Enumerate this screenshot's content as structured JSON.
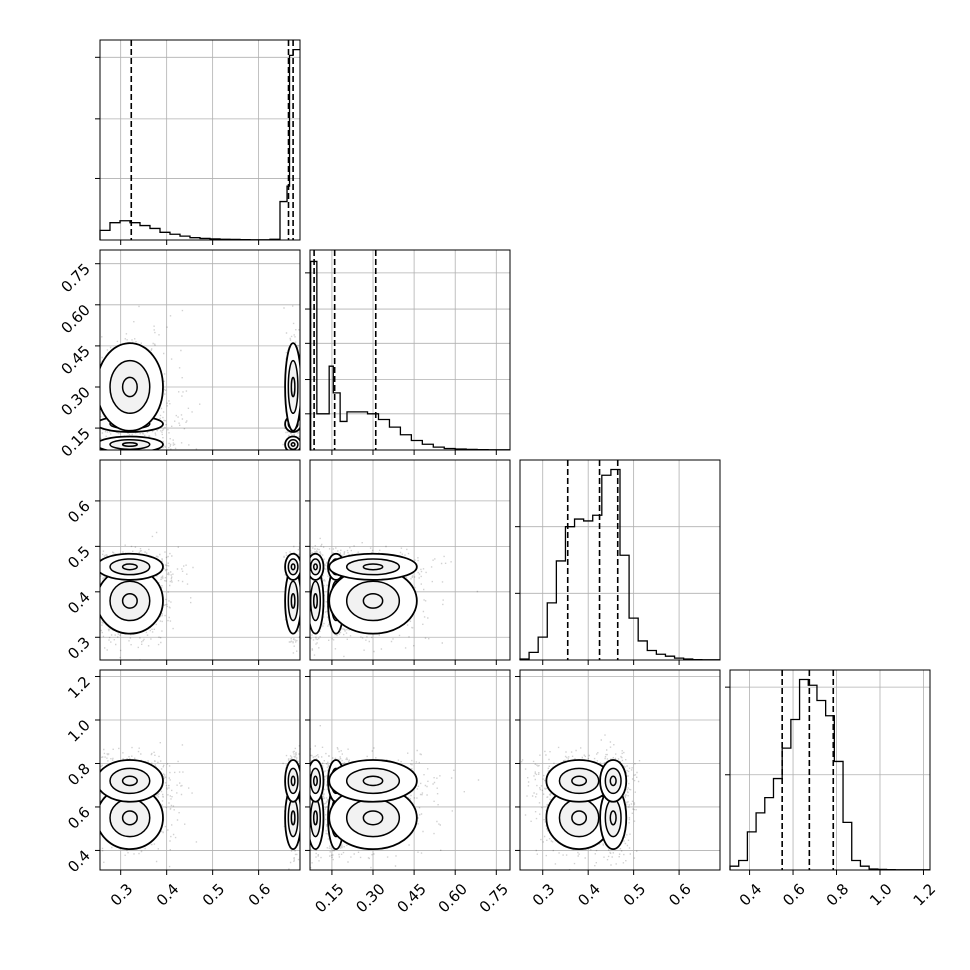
{
  "chart_data": {
    "type": "scatter",
    "title": "",
    "variables": [
      {
        "range": [
          0.255,
          0.69
        ],
        "ticks": [
          "0.3",
          "0.4",
          "0.5",
          "0.6"
        ],
        "tick_values": [
          0.3,
          0.4,
          0.5,
          0.6
        ],
        "quantiles": [
          0.323,
          0.665,
          0.675
        ],
        "modes": [
          {
            "center": 0.32,
            "spread": 0.045,
            "weight": 0.6
          },
          {
            "center": 0.675,
            "spread": 0.008,
            "weight": 0.4
          }
        ]
      },
      {
        "range": [
          0.07,
          0.8
        ],
        "ticks": [
          "0.15",
          "0.30",
          "0.45",
          "0.60",
          "0.75"
        ],
        "tick_values": [
          0.15,
          0.3,
          0.45,
          0.6,
          0.75
        ],
        "quantiles": [
          0.085,
          0.16,
          0.31
        ],
        "modes": [
          {
            "center": 0.09,
            "spread": 0.012,
            "weight": 0.3
          },
          {
            "center": 0.165,
            "spread": 0.018,
            "weight": 0.3
          },
          {
            "center": 0.3,
            "spread": 0.1,
            "weight": 0.4
          }
        ]
      },
      {
        "range": [
          0.25,
          0.69
        ],
        "ticks": [
          "0.3",
          "0.4",
          "0.5",
          "0.6"
        ],
        "tick_values": [
          0.3,
          0.4,
          0.5,
          0.6
        ],
        "quantiles": [
          0.355,
          0.425,
          0.465
        ],
        "modes": [
          {
            "center": 0.38,
            "spread": 0.045,
            "weight": 0.55
          },
          {
            "center": 0.455,
            "spread": 0.018,
            "weight": 0.45
          }
        ]
      },
      {
        "range": [
          0.31,
          1.23
        ],
        "ticks": [
          "0.4",
          "0.6",
          "0.8",
          "1.0",
          "1.2"
        ],
        "tick_values": [
          0.4,
          0.6,
          0.8,
          1.0,
          1.2
        ],
        "quantiles": [
          0.55,
          0.675,
          0.785
        ],
        "modes": [
          {
            "center": 0.55,
            "spread": 0.09,
            "weight": 0.4
          },
          {
            "center": 0.72,
            "spread": 0.06,
            "weight": 0.6
          }
        ]
      }
    ],
    "histograms": [
      {
        "variable": 0,
        "bin_edges": [
          0.255,
          0.2767,
          0.2985,
          0.3202,
          0.342,
          0.3637,
          0.3855,
          0.4072,
          0.429,
          0.4507,
          0.4725,
          0.4942,
          0.516,
          0.5377,
          0.5595,
          0.5812,
          0.603,
          0.6247,
          0.6465,
          0.6618,
          0.6672,
          0.675,
          0.69
        ],
        "counts": [
          0.05,
          0.09,
          0.1,
          0.09,
          0.075,
          0.06,
          0.04,
          0.03,
          0.02,
          0.012,
          0.008,
          0.006,
          0.004,
          0.003,
          0.002,
          0.001,
          0.001,
          0.004,
          0.2,
          0.28,
          0.96,
          0.99
        ],
        "ymax": 1.04,
        "ytick_values": [
          0.32,
          0.63,
          0.95
        ]
      },
      {
        "variable": 1,
        "bin_edges": [
          0.07,
          0.0725,
          0.095,
          0.12,
          0.14,
          0.155,
          0.18,
          0.205,
          0.23,
          0.28,
          0.32,
          0.36,
          0.4,
          0.44,
          0.48,
          0.52,
          0.56,
          0.6,
          0.64,
          0.68,
          0.72,
          0.76,
          0.8
        ],
        "counts": [
          0,
          0.99,
          0.19,
          0.19,
          0.44,
          0.3,
          0.15,
          0.2,
          0.2,
          0.19,
          0.16,
          0.12,
          0.08,
          0.05,
          0.03,
          0.015,
          0.008,
          0.005,
          0.003,
          0.002,
          0.001,
          0.001
        ],
        "ymax": 1.05,
        "ytick_values": [
          0.19,
          0.37,
          0.56,
          0.74,
          0.93
        ]
      },
      {
        "variable": 2,
        "bin_edges": [
          0.25,
          0.27,
          0.29,
          0.31,
          0.33,
          0.35,
          0.37,
          0.39,
          0.41,
          0.43,
          0.45,
          0.47,
          0.49,
          0.51,
          0.53,
          0.55,
          0.57,
          0.59,
          0.61,
          0.63,
          0.65,
          0.69
        ],
        "counts": [
          0.005,
          0.04,
          0.12,
          0.3,
          0.52,
          0.7,
          0.74,
          0.73,
          0.76,
          0.97,
          1.0,
          0.55,
          0.22,
          0.1,
          0.05,
          0.03,
          0.02,
          0.01,
          0.005,
          0.002,
          0.001
        ],
        "ymax": 1.05,
        "ytick_values": [
          0.35,
          0.7
        ]
      },
      {
        "variable": 3,
        "bin_edges": [
          0.31,
          0.35,
          0.39,
          0.43,
          0.47,
          0.51,
          0.55,
          0.59,
          0.63,
          0.67,
          0.71,
          0.75,
          0.79,
          0.83,
          0.87,
          0.91,
          0.95,
          0.99,
          1.03,
          1.07,
          1.11,
          1.15,
          1.23
        ],
        "counts": [
          0.02,
          0.05,
          0.2,
          0.3,
          0.38,
          0.48,
          0.64,
          0.79,
          1.0,
          0.97,
          0.89,
          0.81,
          0.57,
          0.25,
          0.05,
          0.02,
          0.005,
          0.003,
          0.002,
          0.001,
          0.001,
          0.001
        ],
        "ymax": 1.05,
        "ytick_values": [
          0.5,
          0.96
        ]
      }
    ],
    "scatter_panels": [
      {
        "x_var": 0,
        "y_var": 1
      },
      {
        "x_var": 0,
        "y_var": 2
      },
      {
        "x_var": 1,
        "y_var": 2
      },
      {
        "x_var": 0,
        "y_var": 3
      },
      {
        "x_var": 1,
        "y_var": 3
      },
      {
        "x_var": 2,
        "y_var": 3
      }
    ],
    "grid": true,
    "colors": {
      "line": "#000000",
      "grid": "#b0b0b0",
      "background": "#ffffff"
    }
  }
}
